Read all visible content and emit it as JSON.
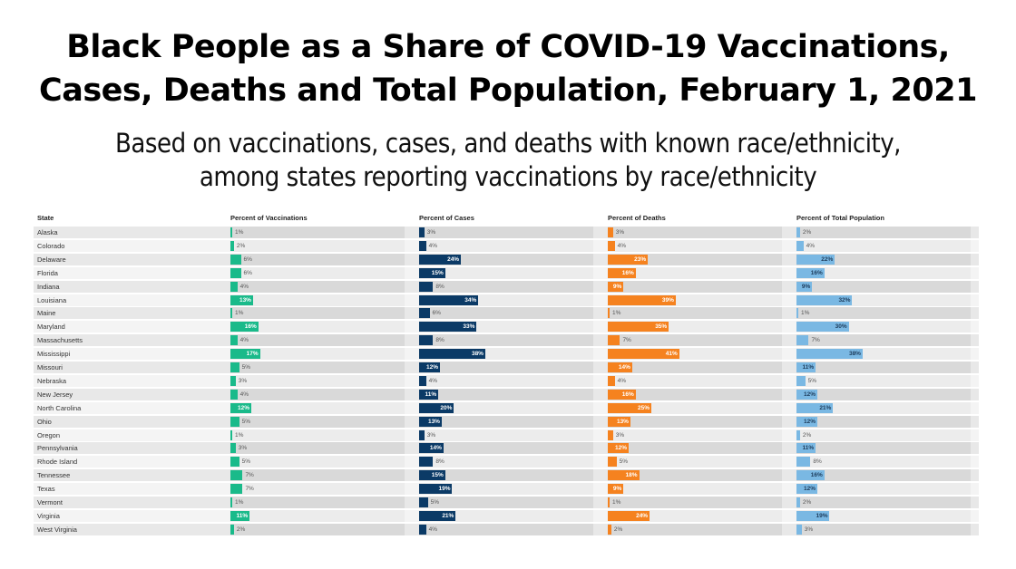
{
  "title_lines": [
    "Black People as a Share of COVID-19 Vaccinations,",
    "Cases, Deaths and Total Population, February 1, 2021"
  ],
  "subtitle_lines": [
    "Based on vaccinations, cases, and deaths with known race/ethnicity,",
    "among states reporting vaccinations by race/ethnicity"
  ],
  "chart_data": {
    "type": "bar",
    "orientation": "horizontal",
    "title": "Black People as a Share of COVID-19 Vaccinations, Cases, Deaths and Total Population, February 1, 2021",
    "subtitle": "Based on vaccinations, cases, and deaths with known race/ethnicity, among states reporting vaccinations by race/ethnicity",
    "category_header": "State",
    "categories": [
      "Alaska",
      "Colorado",
      "Delaware",
      "Florida",
      "Indiana",
      "Louisiana",
      "Maine",
      "Maryland",
      "Massachusetts",
      "Mississippi",
      "Missouri",
      "Nebraska",
      "New Jersey",
      "North Carolina",
      "Ohio",
      "Oregon",
      "Pennsylvania",
      "Rhode Island",
      "Tennessee",
      "Texas",
      "Vermont",
      "Virginia",
      "West Virginia"
    ],
    "xlim": [
      0,
      100
    ],
    "unit": "%",
    "series": [
      {
        "name": "Percent of Vaccinations",
        "color": "#1aba8a",
        "values": [
          1,
          2,
          6,
          6,
          4,
          13,
          1,
          16,
          4,
          17,
          5,
          3,
          4,
          12,
          5,
          1,
          3,
          5,
          7,
          7,
          1,
          11,
          2
        ]
      },
      {
        "name": "Percent of Cases",
        "color": "#0b3a66",
        "values": [
          3,
          4,
          24,
          15,
          8,
          34,
          6,
          33,
          8,
          38,
          12,
          4,
          11,
          20,
          13,
          3,
          14,
          8,
          15,
          19,
          5,
          21,
          4
        ]
      },
      {
        "name": "Percent of Deaths",
        "color": "#f5821f",
        "values": [
          3,
          4,
          23,
          16,
          9,
          39,
          1,
          35,
          7,
          41,
          14,
          4,
          16,
          25,
          13,
          3,
          12,
          5,
          18,
          9,
          1,
          24,
          2
        ]
      },
      {
        "name": "Percent of Total Population",
        "color": "#7ab8e3",
        "values": [
          2,
          4,
          22,
          16,
          9,
          32,
          1,
          30,
          7,
          38,
          11,
          5,
          12,
          21,
          12,
          2,
          11,
          8,
          16,
          12,
          2,
          19,
          3
        ]
      }
    ]
  }
}
